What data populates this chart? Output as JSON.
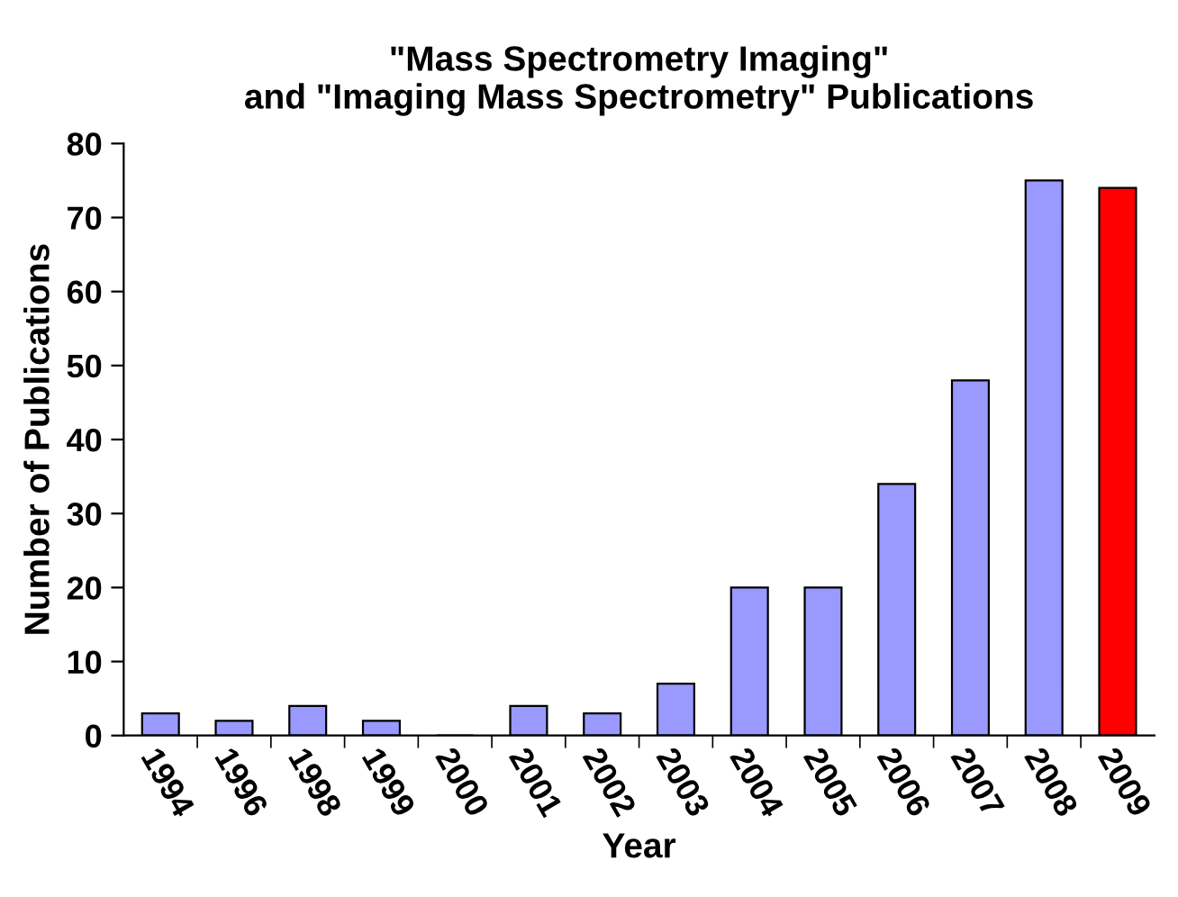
{
  "chart_data": {
    "type": "bar",
    "title": "\"Mass Spectrometry Imaging\"\nand \"Imaging Mass Spectrometry\" Publications",
    "xlabel": "Year",
    "ylabel": "Number of Publications",
    "categories": [
      "1994",
      "1996",
      "1998",
      "1999",
      "2000",
      "2001",
      "2002",
      "2003",
      "2004",
      "2005",
      "2006",
      "2007",
      "2008",
      "2009"
    ],
    "values": [
      3,
      2,
      4,
      2,
      0,
      4,
      3,
      7,
      20,
      20,
      34,
      48,
      75,
      74
    ],
    "colors": [
      "#9999ff",
      "#9999ff",
      "#9999ff",
      "#9999ff",
      "#9999ff",
      "#9999ff",
      "#9999ff",
      "#9999ff",
      "#9999ff",
      "#9999ff",
      "#9999ff",
      "#9999ff",
      "#9999ff",
      "#ff0000"
    ],
    "ylim": [
      0,
      80
    ],
    "yticks": [
      0,
      10,
      20,
      30,
      40,
      50,
      60,
      70,
      80
    ],
    "grid": false,
    "legend": false
  }
}
